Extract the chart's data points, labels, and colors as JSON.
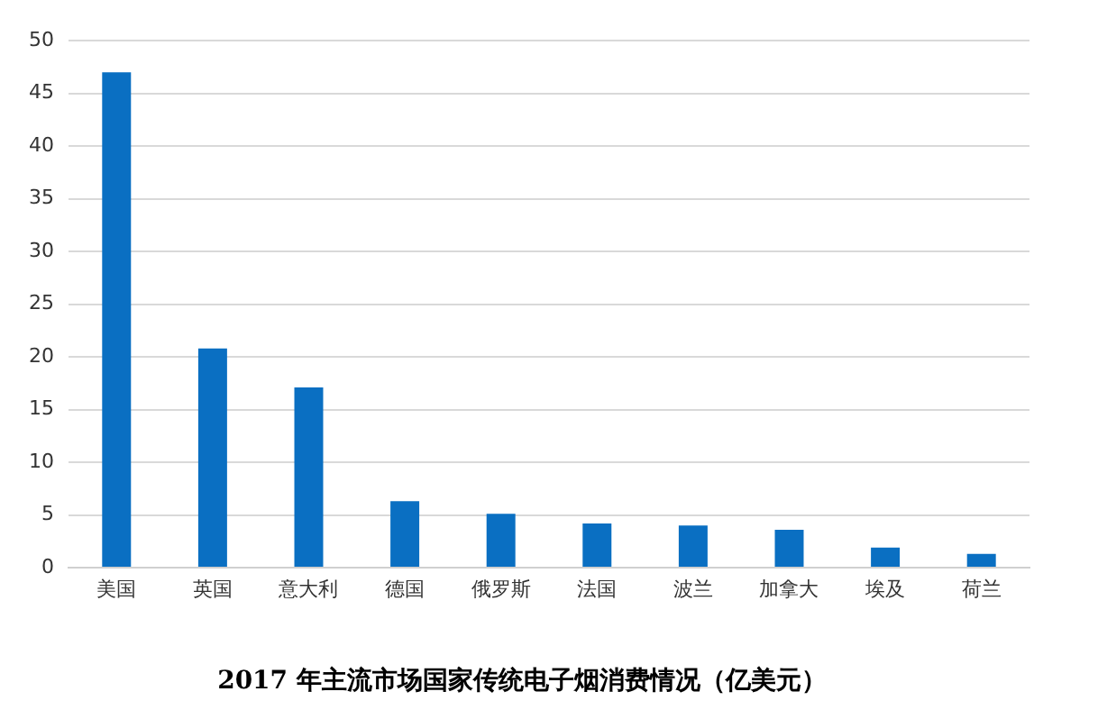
{
  "chart_data": {
    "type": "bar",
    "title": "2017 年主流市场国家传统电子烟消费情况（亿美元）",
    "categories": [
      "美国",
      "英国",
      "意大利",
      "德国",
      "俄罗斯",
      "法国",
      "波兰",
      "加拿大",
      "埃及",
      "荷兰"
    ],
    "values": [
      47,
      20.8,
      17.1,
      6.3,
      5.1,
      4.2,
      4.0,
      3.6,
      1.9,
      1.3
    ],
    "color": "#0a6fc2",
    "ylim": [
      0,
      50
    ],
    "yticks": [
      0,
      5,
      10,
      15,
      20,
      25,
      30,
      35,
      40,
      45,
      50
    ],
    "grid": "y",
    "legend": false
  }
}
